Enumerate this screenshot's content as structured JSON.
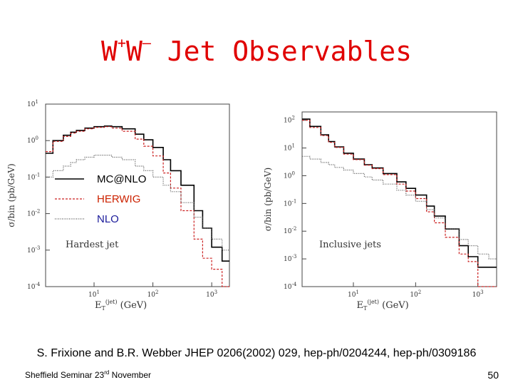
{
  "slide": {
    "title_w1": "W",
    "title_sup1": "+",
    "title_w2": "W",
    "title_sup2": "–",
    "title_rest": " Jet Observables",
    "citation": "S. Frixione and B.R. Webber JHEP 0206(2002) 029, hep-ph/0204244, hep-ph/0309186",
    "footer_text": "Sheffield Seminar 23",
    "footer_sup": "rd",
    "footer_text2": " November",
    "page_number": "50"
  },
  "colors": {
    "title": "#e00000",
    "mcatnlo": "#000000",
    "herwig": "#cc2222",
    "nlo": "#555555",
    "legend_mcatnlo": "#000000",
    "legend_herwig": "#cc2200",
    "legend_nlo": "#1a1a9a"
  },
  "chart_data": [
    {
      "type": "line",
      "title": "Hardest jet",
      "ylabel": "σ/bin (pb/GeV)",
      "xlabel": "E_T^(jet) (GeV)",
      "xlabel_main": "E",
      "xlabel_sub": "T",
      "xlabel_sup": "(jet)",
      "xlabel_unit": "(GeV)",
      "xscale": "log",
      "yscale": "log",
      "xlim": [
        1.5,
        2000
      ],
      "ylim": [
        0.0001,
        10
      ],
      "xticks": [
        {
          "v": 10,
          "label": "10",
          "sup": "1"
        },
        {
          "v": 100,
          "label": "10",
          "sup": "2"
        },
        {
          "v": 1000,
          "label": "10",
          "sup": "3"
        }
      ],
      "yticks": [
        {
          "v": 10,
          "label": "10",
          "sup": "1"
        },
        {
          "v": 1,
          "label": "10",
          "sup": "0"
        },
        {
          "v": 0.1,
          "label": "10",
          "sup": "-1"
        },
        {
          "v": 0.01,
          "label": "10",
          "sup": "-2"
        },
        {
          "v": 0.001,
          "label": "10",
          "sup": "-3"
        },
        {
          "v": 0.0001,
          "label": "10",
          "sup": "-4"
        }
      ],
      "legend": [
        "MC@NLO",
        "HERWIG",
        "NLO"
      ],
      "x": [
        1.5,
        2,
        3,
        4,
        5,
        7,
        10,
        15,
        20,
        30,
        50,
        70,
        100,
        150,
        200,
        300,
        500,
        700,
        1000,
        1500
      ],
      "series": [
        {
          "name": "MC@NLO",
          "values": [
            0.45,
            1.0,
            1.4,
            1.7,
            1.9,
            2.2,
            2.4,
            2.5,
            2.4,
            2.1,
            1.5,
            1.05,
            0.65,
            0.3,
            0.15,
            0.06,
            0.012,
            0.004,
            0.0012,
            0.0005
          ]
        },
        {
          "name": "HERWIG",
          "values": [
            0.5,
            0.95,
            1.3,
            1.6,
            1.8,
            2.1,
            2.3,
            2.4,
            2.2,
            1.8,
            1.1,
            0.7,
            0.38,
            0.13,
            0.05,
            0.012,
            0.002,
            0.0006,
            0.0003,
            0.0001
          ]
        },
        {
          "name": "NLO",
          "values": [
            0.1,
            0.15,
            0.2,
            0.25,
            0.3,
            0.35,
            0.4,
            0.4,
            0.35,
            0.3,
            0.2,
            0.15,
            0.1,
            0.06,
            0.04,
            0.02,
            0.008,
            0.004,
            0.002,
            0.001
          ]
        }
      ]
    },
    {
      "type": "line",
      "title": "Inclusive jets",
      "ylabel": "σ/bin (pb/GeV)",
      "xlabel": "E_T^(jet) (GeV)",
      "xlabel_main": "E",
      "xlabel_sub": "T",
      "xlabel_sup": "(jet)",
      "xlabel_unit": "(GeV)",
      "xscale": "log",
      "yscale": "log",
      "xlim": [
        1.5,
        2000
      ],
      "ylim": [
        0.0001,
        200
      ],
      "xticks": [
        {
          "v": 10,
          "label": "10",
          "sup": "1"
        },
        {
          "v": 100,
          "label": "10",
          "sup": "2"
        },
        {
          "v": 1000,
          "label": "10",
          "sup": "3"
        }
      ],
      "yticks": [
        {
          "v": 100,
          "label": "10",
          "sup": "2"
        },
        {
          "v": 10,
          "label": "10",
          "sup": "1"
        },
        {
          "v": 1,
          "label": "10",
          "sup": "0"
        },
        {
          "v": 0.1,
          "label": "10",
          "sup": "-1"
        },
        {
          "v": 0.01,
          "label": "10",
          "sup": "-2"
        },
        {
          "v": 0.001,
          "label": "10",
          "sup": "-3"
        },
        {
          "v": 0.0001,
          "label": "10",
          "sup": "-4"
        }
      ],
      "x": [
        1.5,
        2,
        3,
        4,
        5,
        7,
        10,
        15,
        20,
        30,
        50,
        70,
        100,
        150,
        200,
        300,
        500,
        700,
        1000,
        1500
      ],
      "series": [
        {
          "name": "MC@NLO",
          "values": [
            110,
            60,
            30,
            17,
            11,
            6.5,
            4.0,
            2.5,
            1.9,
            1.2,
            0.6,
            0.35,
            0.2,
            0.08,
            0.035,
            0.012,
            0.003,
            0.0012,
            0.0005,
            0.0005
          ]
        },
        {
          "name": "HERWIG",
          "values": [
            100,
            55,
            28,
            16,
            10.5,
            6.0,
            3.8,
            2.4,
            1.8,
            1.1,
            0.5,
            0.28,
            0.15,
            0.05,
            0.02,
            0.006,
            0.0015,
            0.0008,
            0.0001,
            0.0001
          ]
        },
        {
          "name": "NLO",
          "values": [
            5,
            4,
            3,
            2.5,
            2,
            1.6,
            1.2,
            0.9,
            0.7,
            0.5,
            0.3,
            0.2,
            0.12,
            0.06,
            0.03,
            0.012,
            0.005,
            0.003,
            0.0015,
            0.001
          ]
        }
      ]
    }
  ]
}
